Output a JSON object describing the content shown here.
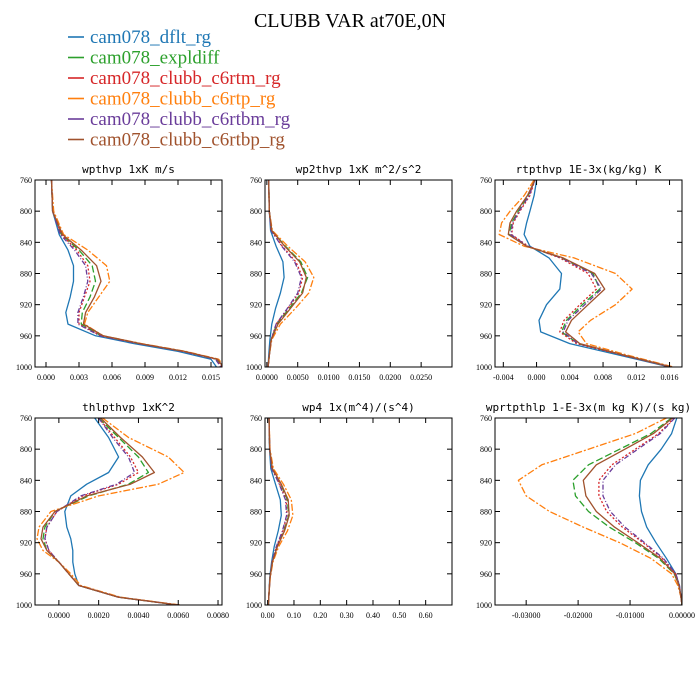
{
  "title": "CLUBB VAR at70E,0N",
  "legend": [
    {
      "label": "cam078_dflt_rg",
      "color": "#1f77b4",
      "dash": "solid"
    },
    {
      "label": "cam078_expldiff",
      "color": "#2ca02c",
      "dash": "dash"
    },
    {
      "label": "cam078_clubb_c6rtm_rg",
      "color": "#d62728",
      "dash": "dot"
    },
    {
      "label": "cam078_clubb_c6rtp_rg",
      "color": "#ff7f0e",
      "dash": "dashdot"
    },
    {
      "label": "cam078_clubb_c6rtbm_rg",
      "color": "#6a3d9a",
      "dash": "dashdot2"
    },
    {
      "label": "cam078_clubb_c6rtbp_rg",
      "color": "#a0522d",
      "dash": "solid"
    }
  ],
  "chart_data": [
    {
      "type": "line",
      "title": "wpthvp  1xK m/s",
      "xlim": [
        -0.001,
        0.016
      ],
      "ylim": [
        760,
        1000
      ],
      "y_inverted": true,
      "xticks": [
        0.0,
        0.003,
        0.006,
        0.009,
        0.012,
        0.015
      ],
      "xtick_labels": [
        "0.000",
        "0.003",
        "0.006",
        "0.009",
        "0.012",
        "0.015"
      ],
      "yticks": [
        760,
        800,
        840,
        880,
        920,
        960,
        1000
      ],
      "y": [
        760,
        800,
        830,
        850,
        870,
        890,
        910,
        930,
        945,
        960,
        970,
        980,
        990,
        1000
      ],
      "series": [
        {
          "values": [
            0.0005,
            0.0006,
            0.0012,
            0.002,
            0.0025,
            0.0025,
            0.0022,
            0.0018,
            0.002,
            0.0045,
            0.008,
            0.012,
            0.015,
            0.0155
          ]
        },
        {
          "values": [
            0.0005,
            0.0006,
            0.0014,
            0.003,
            0.0042,
            0.0045,
            0.004,
            0.0033,
            0.0032,
            0.005,
            0.0085,
            0.0125,
            0.0155,
            0.016
          ]
        },
        {
          "values": [
            0.0005,
            0.0006,
            0.0014,
            0.0028,
            0.0038,
            0.004,
            0.0035,
            0.003,
            0.003,
            0.005,
            0.0085,
            0.0125,
            0.0155,
            0.016
          ]
        },
        {
          "values": [
            0.0005,
            0.0007,
            0.0016,
            0.0038,
            0.0055,
            0.0058,
            0.0048,
            0.0038,
            0.0035,
            0.0052,
            0.0087,
            0.0127,
            0.0157,
            0.0162
          ]
        },
        {
          "values": [
            0.0005,
            0.0006,
            0.0013,
            0.0026,
            0.0036,
            0.0038,
            0.0034,
            0.0029,
            0.0029,
            0.0049,
            0.0084,
            0.0124,
            0.0154,
            0.0159
          ]
        },
        {
          "values": [
            0.0005,
            0.0006,
            0.0015,
            0.0032,
            0.0046,
            0.005,
            0.0044,
            0.0036,
            0.0034,
            0.0052,
            0.0086,
            0.0126,
            0.0156,
            0.0161
          ]
        }
      ]
    },
    {
      "type": "line",
      "title": "wp2thvp  1xK m^2/s^2",
      "xlim": [
        -0.0003,
        0.03
      ],
      "ylim": [
        760,
        1000
      ],
      "y_inverted": true,
      "xticks": [
        0.0,
        0.005,
        0.01,
        0.015,
        0.02,
        0.025
      ],
      "xtick_labels": [
        "0.0000",
        "0.0050",
        "0.0100",
        "0.0150",
        "0.0200",
        "0.0250"
      ],
      "yticks": [
        760,
        800,
        840,
        880,
        920,
        960,
        1000
      ],
      "y": [
        760,
        800,
        825,
        845,
        865,
        885,
        905,
        925,
        945,
        965,
        985,
        1000
      ],
      "series": [
        {
          "values": [
            0.0003,
            0.0004,
            0.0006,
            0.0015,
            0.0026,
            0.0028,
            0.0022,
            0.0014,
            0.0008,
            0.0005,
            0.0003,
            0.0002
          ]
        },
        {
          "values": [
            0.0003,
            0.0004,
            0.0008,
            0.003,
            0.0055,
            0.0066,
            0.0056,
            0.0036,
            0.0016,
            0.0007,
            0.0004,
            0.0002
          ]
        },
        {
          "values": [
            0.0003,
            0.0004,
            0.0007,
            0.0025,
            0.0047,
            0.0058,
            0.0052,
            0.0034,
            0.0015,
            0.0007,
            0.0004,
            0.0002
          ]
        },
        {
          "values": [
            0.0003,
            0.0004,
            0.0009,
            0.0034,
            0.0062,
            0.0076,
            0.0068,
            0.0046,
            0.0022,
            0.0008,
            0.0004,
            0.0002
          ]
        },
        {
          "values": [
            0.0003,
            0.0004,
            0.0007,
            0.0024,
            0.0045,
            0.0056,
            0.005,
            0.0033,
            0.0015,
            0.0007,
            0.0004,
            0.0002
          ]
        },
        {
          "values": [
            0.0003,
            0.0004,
            0.0008,
            0.0029,
            0.0053,
            0.0064,
            0.0058,
            0.0038,
            0.0018,
            0.0007,
            0.0004,
            0.0002
          ]
        }
      ]
    },
    {
      "type": "line",
      "title": "rtpthvp  1E-3x(kg/kg) K",
      "xlim": [
        -0.005,
        0.0175
      ],
      "ylim": [
        760,
        1000
      ],
      "y_inverted": true,
      "xticks": [
        -0.004,
        0.0,
        0.004,
        0.008,
        0.012,
        0.016
      ],
      "xtick_labels": [
        "-0.004",
        "0.000",
        "0.004",
        "0.008",
        "0.012",
        "0.016"
      ],
      "yticks": [
        760,
        800,
        840,
        880,
        920,
        960,
        1000
      ],
      "y": [
        760,
        780,
        800,
        815,
        830,
        845,
        860,
        880,
        900,
        920,
        940,
        955,
        970,
        985,
        1000
      ],
      "series": [
        {
          "values": [
            0.0,
            -0.0003,
            -0.0008,
            -0.0012,
            -0.0015,
            -0.0008,
            0.0015,
            0.003,
            0.0028,
            0.0012,
            0.0003,
            0.0005,
            0.004,
            0.01,
            0.016
          ]
        },
        {
          "values": [
            -0.0002,
            -0.001,
            -0.0022,
            -0.003,
            -0.0033,
            -0.0012,
            0.003,
            0.0068,
            0.0076,
            0.0055,
            0.0036,
            0.003,
            0.005,
            0.0105,
            0.0162
          ]
        },
        {
          "values": [
            -0.0002,
            -0.0008,
            -0.002,
            -0.0028,
            -0.003,
            -0.001,
            0.0028,
            0.0062,
            0.0072,
            0.0052,
            0.0033,
            0.0028,
            0.0048,
            0.0104,
            0.0161
          ]
        },
        {
          "values": [
            -0.0003,
            -0.0015,
            -0.0032,
            -0.0042,
            -0.0045,
            -0.0015,
            0.0045,
            0.0095,
            0.0115,
            0.0095,
            0.0065,
            0.005,
            0.006,
            0.011,
            0.0165
          ]
        },
        {
          "values": [
            -0.0002,
            -0.0009,
            -0.0021,
            -0.0029,
            -0.0031,
            -0.0011,
            0.003,
            0.0066,
            0.0078,
            0.0058,
            0.0038,
            0.0032,
            0.005,
            0.0105,
            0.0162
          ]
        },
        {
          "values": [
            -0.0002,
            -0.0011,
            -0.0024,
            -0.0032,
            -0.0034,
            -0.0012,
            0.0032,
            0.007,
            0.0082,
            0.0062,
            0.0042,
            0.0035,
            0.0052,
            0.0106,
            0.0163
          ]
        }
      ]
    },
    {
      "type": "line",
      "title": "thlpthvp  1xK^2",
      "xlim": [
        -0.0012,
        0.0082
      ],
      "ylim": [
        760,
        1000
      ],
      "y_inverted": true,
      "xticks": [
        0.0,
        0.002,
        0.004,
        0.006,
        0.008
      ],
      "xtick_labels": [
        "0.0000",
        "0.0020",
        "0.0040",
        "0.0060",
        "0.0080"
      ],
      "yticks": [
        760,
        800,
        840,
        880,
        920,
        960,
        1000
      ],
      "y": [
        760,
        785,
        810,
        830,
        845,
        860,
        880,
        900,
        915,
        930,
        945,
        960,
        975,
        990,
        1000
      ],
      "series": [
        {
          "values": [
            0.0018,
            0.0025,
            0.003,
            0.0025,
            0.0014,
            0.0006,
            0.0003,
            0.0004,
            0.0006,
            0.0007,
            0.0007,
            0.0008,
            0.001,
            0.003,
            0.006
          ]
        },
        {
          "values": [
            0.002,
            0.003,
            0.004,
            0.0045,
            0.0035,
            0.0015,
            -0.0002,
            -0.0007,
            -0.0008,
            -0.0006,
            0.0,
            0.0005,
            0.001,
            0.003,
            0.006
          ]
        },
        {
          "values": [
            0.002,
            0.0028,
            0.0036,
            0.004,
            0.003,
            0.0012,
            -0.0001,
            -0.0006,
            -0.0007,
            -0.0005,
            0.0,
            0.0005,
            0.001,
            0.003,
            0.006
          ]
        },
        {
          "values": [
            0.0022,
            0.0035,
            0.0055,
            0.0063,
            0.005,
            0.002,
            -0.0004,
            -0.001,
            -0.0011,
            -0.0008,
            0.0,
            0.0006,
            0.0011,
            0.0031,
            0.0061
          ]
        },
        {
          "values": [
            0.002,
            0.0027,
            0.0035,
            0.0038,
            0.0029,
            0.0011,
            -0.0001,
            -0.0006,
            -0.0007,
            -0.0005,
            0.0,
            0.0005,
            0.001,
            0.003,
            0.006
          ]
        },
        {
          "values": [
            0.0021,
            0.0031,
            0.0042,
            0.0048,
            0.0036,
            0.0014,
            -0.0002,
            -0.0008,
            -0.0009,
            -0.0006,
            0.0,
            0.0005,
            0.001,
            0.003,
            0.006
          ]
        }
      ]
    },
    {
      "type": "line",
      "title": "wp4  1x(m^4)/(s^4)",
      "xlim": [
        -0.01,
        0.7
      ],
      "ylim": [
        760,
        1000
      ],
      "y_inverted": true,
      "xticks": [
        0.0,
        0.1,
        0.2,
        0.3,
        0.4,
        0.5,
        0.6
      ],
      "xtick_labels": [
        "0.00",
        "0.10",
        "0.20",
        "0.30",
        "0.40",
        "0.50",
        "0.60"
      ],
      "yticks": [
        760,
        800,
        840,
        880,
        920,
        960,
        1000
      ],
      "y": [
        760,
        800,
        825,
        845,
        865,
        885,
        905,
        925,
        945,
        965,
        985,
        1000
      ],
      "series": [
        {
          "values": [
            0.005,
            0.007,
            0.012,
            0.03,
            0.048,
            0.052,
            0.04,
            0.025,
            0.015,
            0.008,
            0.005,
            0.003
          ]
        },
        {
          "values": [
            0.005,
            0.008,
            0.018,
            0.05,
            0.075,
            0.08,
            0.062,
            0.036,
            0.018,
            0.009,
            0.005,
            0.003
          ]
        },
        {
          "values": [
            0.005,
            0.008,
            0.016,
            0.046,
            0.07,
            0.074,
            0.058,
            0.034,
            0.017,
            0.009,
            0.005,
            0.003
          ]
        },
        {
          "values": [
            0.005,
            0.009,
            0.022,
            0.06,
            0.09,
            0.096,
            0.075,
            0.042,
            0.02,
            0.01,
            0.005,
            0.003
          ]
        },
        {
          "values": [
            0.005,
            0.008,
            0.016,
            0.044,
            0.068,
            0.072,
            0.056,
            0.033,
            0.017,
            0.009,
            0.005,
            0.003
          ]
        },
        {
          "values": [
            0.005,
            0.008,
            0.018,
            0.052,
            0.078,
            0.082,
            0.064,
            0.037,
            0.018,
            0.009,
            0.005,
            0.003
          ]
        }
      ]
    },
    {
      "type": "line",
      "title": "wprtpthlp  1-E-3x(m kg K)/(s kg)",
      "xlim": [
        -0.036,
        0.0
      ],
      "ylim": [
        760,
        1000
      ],
      "y_inverted": true,
      "xticks": [
        -0.03,
        -0.02,
        -0.01,
        0.0
      ],
      "xtick_labels": [
        "-0.03000",
        "-0.02000",
        "-0.01000",
        "0.00000"
      ],
      "yticks": [
        760,
        800,
        840,
        880,
        920,
        960,
        1000
      ],
      "y": [
        760,
        780,
        800,
        820,
        840,
        860,
        880,
        900,
        920,
        940,
        960,
        975,
        990,
        1000
      ],
      "series": [
        {
          "values": [
            -0.001,
            -0.002,
            -0.004,
            -0.0065,
            -0.008,
            -0.0082,
            -0.0078,
            -0.0068,
            -0.005,
            -0.003,
            -0.0012,
            -0.0005,
            -0.0002,
            0.0
          ]
        },
        {
          "values": [
            -0.002,
            -0.006,
            -0.012,
            -0.018,
            -0.021,
            -0.0205,
            -0.018,
            -0.014,
            -0.009,
            -0.0045,
            -0.0015,
            -0.0006,
            -0.0002,
            0.0
          ]
        },
        {
          "values": [
            -0.0015,
            -0.0045,
            -0.009,
            -0.0135,
            -0.016,
            -0.016,
            -0.0145,
            -0.0115,
            -0.0075,
            -0.0038,
            -0.0012,
            -0.0005,
            -0.0002,
            0.0
          ]
        },
        {
          "values": [
            -0.003,
            -0.009,
            -0.018,
            -0.027,
            -0.0315,
            -0.03,
            -0.0255,
            -0.019,
            -0.012,
            -0.006,
            -0.002,
            -0.0008,
            -0.0002,
            0.0
          ]
        },
        {
          "values": [
            -0.0014,
            -0.0042,
            -0.0085,
            -0.0128,
            -0.0152,
            -0.0152,
            -0.0138,
            -0.011,
            -0.0072,
            -0.0036,
            -0.0012,
            -0.0005,
            -0.0002,
            0.0
          ]
        },
        {
          "values": [
            -0.0018,
            -0.0055,
            -0.011,
            -0.0165,
            -0.019,
            -0.0185,
            -0.0165,
            -0.013,
            -0.0085,
            -0.0042,
            -0.0014,
            -0.0006,
            -0.0002,
            0.0
          ]
        }
      ]
    }
  ]
}
